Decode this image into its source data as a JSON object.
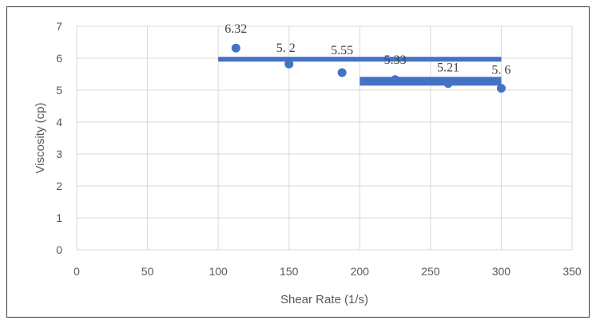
{
  "chart_data": {
    "type": "scatter",
    "title": "",
    "xlabel": "Shear Rate (1/s)",
    "ylabel": "Viscosity (cp)",
    "xlim": [
      0,
      350
    ],
    "ylim": [
      0,
      7
    ],
    "xticks": [
      0,
      50,
      100,
      150,
      200,
      250,
      300,
      350
    ],
    "yticks": [
      0,
      1,
      2,
      3,
      4,
      5,
      6,
      7
    ],
    "grid": true,
    "point_color": "#4472c4",
    "series": [
      {
        "x": [
          112.5,
          150,
          187.5,
          225,
          262.5,
          300
        ],
        "y": [
          6.32,
          5.82,
          5.55,
          5.33,
          5.21,
          5.06
        ],
        "labels": [
          "6.32",
          "5. 2",
          "5.55",
          "5.33",
          "5.21",
          "5. 6"
        ]
      }
    ],
    "overlay_bars": [
      {
        "x_start": 100,
        "x_end": 300,
        "y": 5.97
      },
      {
        "x_start": 200,
        "x_end": 300,
        "y": 5.28
      }
    ],
    "overlay_color": "#4472c4"
  }
}
